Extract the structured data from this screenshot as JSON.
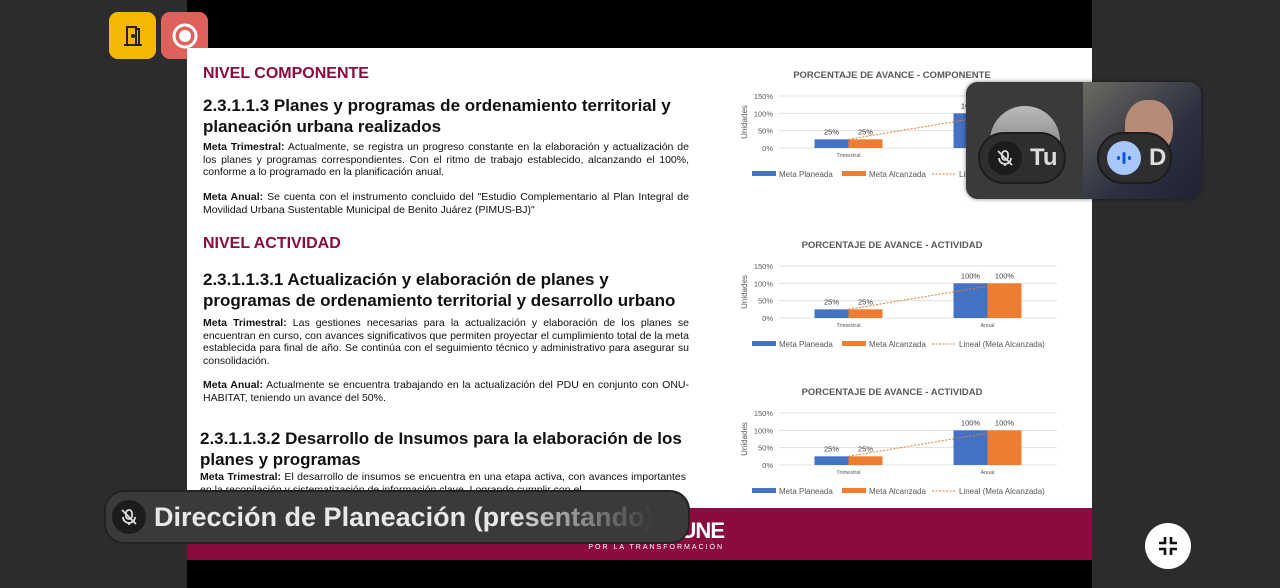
{
  "controls": {
    "leave_icon": "door-icon",
    "record_icon": "record-icon",
    "leave_color": "#f5b800",
    "record_color": "#e0605c"
  },
  "slide": {
    "component_level": "NIVEL COMPONENTE",
    "s1_title": "2.3.1.1.3 Planes y programas de ordenamiento territorial y planeación urbana realizados",
    "s1_trim_label": "Meta Trimestral:",
    "s1_trim_text": " Actualmente, se registra un progreso constante en la elaboración y actualización de los planes y programas correspondientes. Con el ritmo de trabajo establecido, alcanzando el 100%, conforme a lo programado en la planificación anual.",
    "s1_anual_label": "Meta Anual:",
    "s1_anual_text": " Se cuenta con el instrumento concluido del \"Estudio Complementario al Plan Integral de Movilidad Urbana Sustentable Municipal de Benito Juárez (PIMUS-BJ)\"",
    "activity_level": "NIVEL ACTIVIDAD",
    "s2_title": "2.3.1.1.3.1 Actualización y elaboración de planes y programas de ordenamiento territorial y desarrollo urbano",
    "s2_trim_label": "Meta Trimestral:",
    "s2_trim_text": " Las gestiones necesarias para la actualización y elaboración de los planes se encuentran en curso, con avances significativos que permiten proyectar el cumplimiento total de la meta establecida para final de año. Se continúa con el seguimiento técnico y administrativo para asegurar su consolidación.",
    "s2_anual_label": "Meta Anual:",
    "s2_anual_text": "  Actualmente se encuentra trabajando en la actualización del PDU en conjunto con ONU-HABITAT, teniendo un avance del 50%.",
    "s3_title": "2.3.1.1.3.2 Desarrollo de Insumos para la elaboración de los planes y programas",
    "s3_trim_label": "Meta Trimestral:",
    "s3_trim_text": " El desarrollo de insumos se encuentra en una etapa activa, con avances importantes en la recopilación y sistematización de información clave. Logrando cumplir con el",
    "logo_big": "UNE",
    "logo_small": "POR LA TRANSFORMACIÓN",
    "brand_color": "#8a0b3d"
  },
  "chart_data": [
    {
      "type": "bar",
      "title": "PORCENTAJE DE AVANCE - COMPONENTE",
      "ylabel": "Unidades",
      "categories": [
        "Trimestral",
        "Anual"
      ],
      "yticks": [
        "0%",
        "50%",
        "100%",
        "150%"
      ],
      "ylim": [
        0,
        150
      ],
      "series": [
        {
          "name": "Meta Planeada",
          "values": [
            25,
            100
          ],
          "color": "#4472c4"
        },
        {
          "name": "Meta Alcanzada",
          "values": [
            25,
            100
          ],
          "color": "#ed7d31"
        }
      ],
      "trendline": {
        "name": "Lineal (Meta Alcanzada)"
      },
      "data_labels": [
        "25%",
        "25%",
        "100%",
        "100%"
      ],
      "grid": true,
      "legend": "bottom"
    },
    {
      "type": "bar",
      "title": "PORCENTAJE DE AVANCE - ACTIVIDAD",
      "ylabel": "Unidades",
      "categories": [
        "Trimestral",
        "Anual"
      ],
      "yticks": [
        "0%",
        "50%",
        "100%",
        "150%"
      ],
      "ylim": [
        0,
        150
      ],
      "series": [
        {
          "name": "Meta Planeada",
          "values": [
            25,
            100
          ],
          "color": "#4472c4"
        },
        {
          "name": "Meta Alcanzada",
          "values": [
            25,
            100
          ],
          "color": "#ed7d31"
        }
      ],
      "trendline": {
        "name": "Lineal (Meta Alcanzada)"
      },
      "data_labels": [
        "25%",
        "25%",
        "100%",
        "100%"
      ],
      "grid": true,
      "legend": "bottom"
    },
    {
      "type": "bar",
      "title": "PORCENTAJE DE AVANCE - ACTIVIDAD",
      "ylabel": "Unidades",
      "categories": [
        "Trimestral",
        "Anual"
      ],
      "yticks": [
        "0%",
        "50%",
        "100%",
        "150%"
      ],
      "ylim": [
        0,
        150
      ],
      "series": [
        {
          "name": "Meta Planeada",
          "values": [
            25,
            100
          ],
          "color": "#4472c4"
        },
        {
          "name": "Meta Alcanzada",
          "values": [
            25,
            100
          ],
          "color": "#ed7d31"
        }
      ],
      "trendline": {
        "name": "Lineal (Meta Alcanzada)"
      },
      "data_labels": [
        "25%",
        "25%",
        "100%",
        "100%"
      ],
      "grid": true,
      "legend": "bottom"
    }
  ],
  "participants": [
    {
      "name": "Tu",
      "muted": true
    },
    {
      "name": "D",
      "speaking": true
    }
  ],
  "presenter": {
    "name": "Dirección de Planeación (presentando)",
    "muted": true
  },
  "exit_fullscreen_icon": "collapse-icon"
}
